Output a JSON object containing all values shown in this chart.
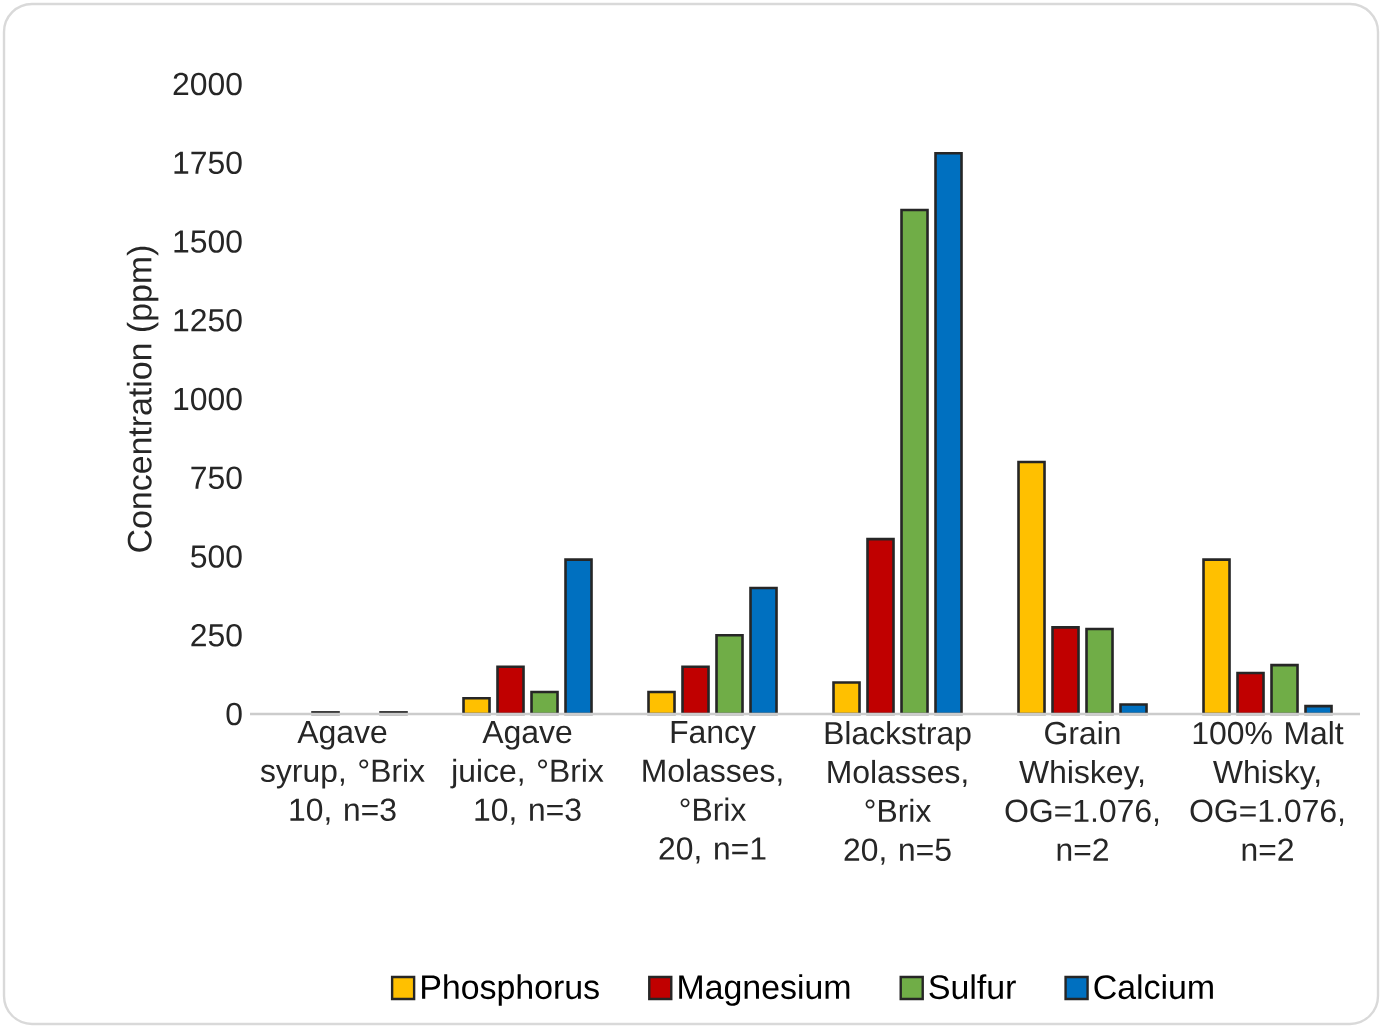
{
  "chart_data": {
    "type": "bar",
    "ylabel": "Concentration (ppm)",
    "categories": [
      "Agave syrup, °Brix 10, n=3",
      "Agave juice, °Brix 10, n=3",
      "Fancy Molasses, °Brix 20, n=1",
      "Blackstrap Molasses, °Brix 20, n=5",
      "Grain Whiskey, OG=1.076, n=2",
      "100% Malt Whisky, OG=1.076, n=2"
    ],
    "series": [
      {
        "name": "Phosphorus",
        "color": "#ffc000",
        "values": [
          null,
          50,
          70,
          100,
          800,
          490
        ]
      },
      {
        "name": "Magnesium",
        "color": "#c00000",
        "values": [
          5,
          150,
          150,
          555,
          275,
          130
        ]
      },
      {
        "name": "Sulfur",
        "color": "#70ad47",
        "values": [
          null,
          70,
          250,
          1600,
          270,
          155
        ]
      },
      {
        "name": "Calcium",
        "color": "#0070c0",
        "values": [
          5,
          490,
          400,
          1780,
          30,
          25
        ]
      }
    ],
    "ylim": [
      0,
      2000
    ],
    "yticks": [
      0,
      250,
      500,
      750,
      1000,
      1250,
      1500,
      1750,
      2000
    ],
    "legend": "bottom"
  }
}
